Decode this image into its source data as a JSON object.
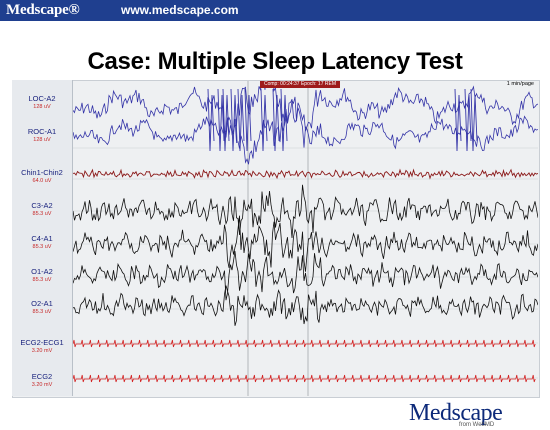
{
  "header": {
    "brand": "Medscape®",
    "url": "www.medscape.com"
  },
  "slide": {
    "title": "Case: Multiple Sleep Latency Test"
  },
  "eeg": {
    "top_info": "Comp: 00:24:37 Epoch: 17 REM",
    "min_per_page": "1 min/page",
    "channels": [
      {
        "name": "LOC-A2",
        "scale": "128 uV"
      },
      {
        "name": "ROC-A1",
        "scale": "128 uV"
      },
      {
        "name": "Chin1-Chin2",
        "scale": "64.0 uV"
      },
      {
        "name": "C3-A2",
        "scale": "85.3 uV"
      },
      {
        "name": "C4-A1",
        "scale": "85.3 uV"
      },
      {
        "name": "O1-A2",
        "scale": "85.3 uV"
      },
      {
        "name": "O2-A1",
        "scale": "85.3 uV"
      },
      {
        "name": "ECG2-ECG1",
        "scale": "3.20 mV"
      },
      {
        "name": "ECG2",
        "scale": "3.20 mV"
      }
    ]
  },
  "footer": {
    "logo": "Medscape",
    "logo_sub": "from WebMD"
  }
}
